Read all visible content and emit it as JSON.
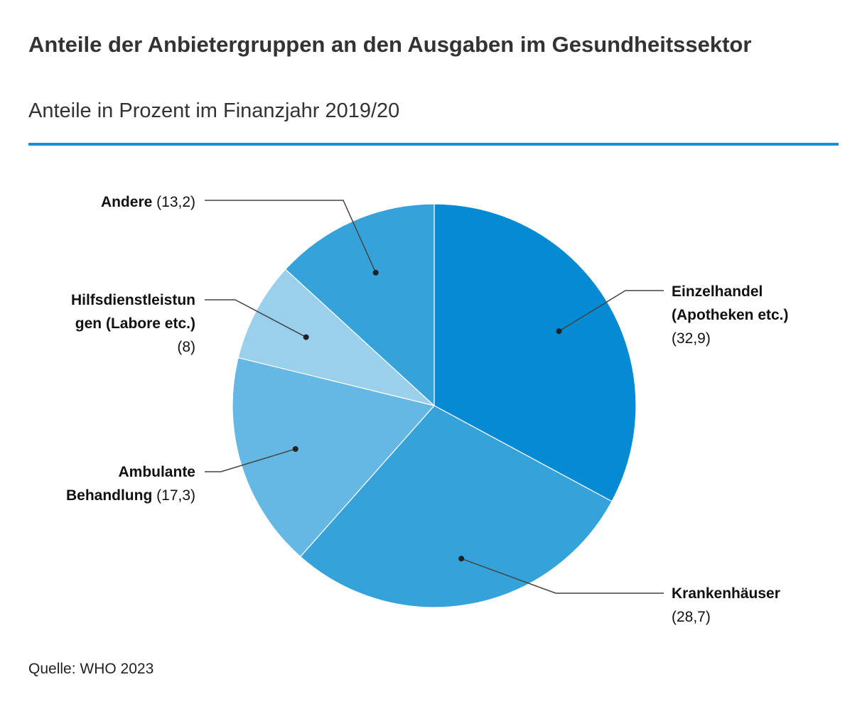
{
  "header": {
    "title": "Anteile der Anbietergruppen an den Ausgaben im Gesundheitssektor",
    "subtitle": "Anteile in Prozent im Finanzjahr 2019/20"
  },
  "footer": {
    "source": "Quelle: WHO 2023"
  },
  "colors": {
    "rule": "#1b8fd3",
    "leader": "#444444",
    "dot": "#222222",
    "separator": "#ffffff"
  },
  "chart_data": {
    "type": "pie",
    "title": "Anteile der Anbietergruppen an den Ausgaben im Gesundheitssektor",
    "subtitle": "Anteile in Prozent im Finanzjahr 2019/20",
    "unit": "Prozent",
    "start": "12 o'clock, clockwise",
    "slices": [
      {
        "label": "Einzelhandel (Apotheken etc.)",
        "value": 32.9,
        "value_text": "(32,9)",
        "color": "#048bd3"
      },
      {
        "label": "Krankenhäuser",
        "value": 28.7,
        "value_text": "(28,7)",
        "color": "#35a2da"
      },
      {
        "label": "Ambulante Behandlung",
        "value": 17.3,
        "value_text": "(17,3)",
        "color": "#66b8e4"
      },
      {
        "label": "Hilfsdienstleistungen (Labore etc.)",
        "value": 8,
        "value_text": "(8)",
        "color": "#9ad0ec"
      },
      {
        "label": "Andere",
        "value": 13.2,
        "value_text": "(13,2)",
        "color": "#35a2da"
      }
    ],
    "labels": {
      "einzelhandel": {
        "line1": "Einzelhandel",
        "line2": "(Apotheken etc.)",
        "value": "(32,9)"
      },
      "krankenhaeuser": {
        "line1": "Krankenhäuser",
        "value": "(28,7)"
      },
      "ambulant": {
        "line1": "Ambulante",
        "line2": "Behandlung",
        "value": "(17,3)"
      },
      "hilfs": {
        "line1": "Hilfsdienstleistun",
        "line2": "gen (Labore etc.)",
        "value": "(8)"
      },
      "andere": {
        "line1": "Andere",
        "value": "(13,2)"
      }
    }
  }
}
